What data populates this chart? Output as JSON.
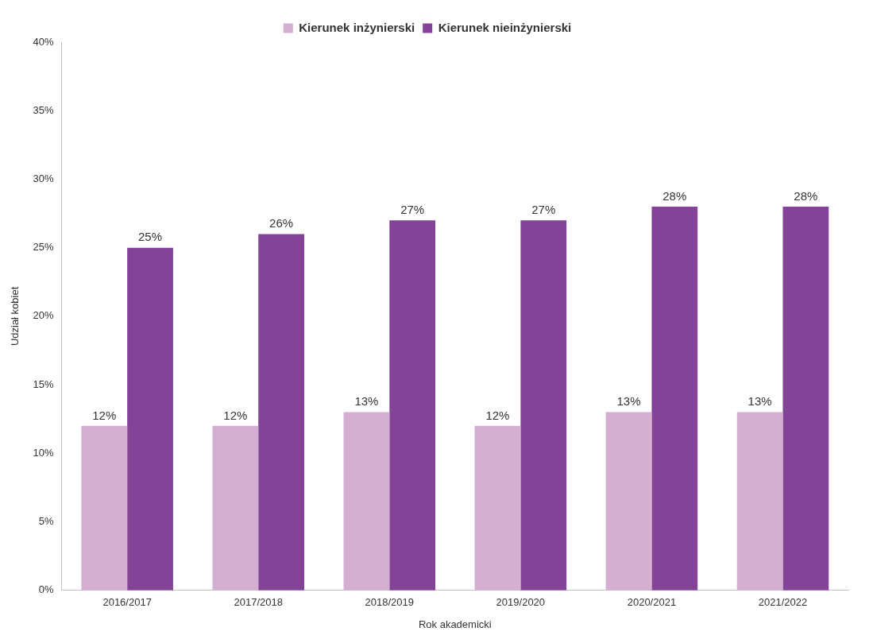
{
  "chart_data": {
    "type": "bar",
    "xlabel": "Rok akademicki",
    "ylabel": "Udział kobiet",
    "categories": [
      "2016/2017",
      "2017/2018",
      "2018/2019",
      "2019/2020",
      "2020/2021",
      "2021/2022"
    ],
    "series": [
      {
        "name": "Kierunek inżynierski",
        "color": "#d4afd1",
        "values": [
          12,
          12,
          13,
          12,
          13,
          13
        ],
        "value_labels": [
          "12%",
          "12%",
          "13%",
          "12%",
          "13%",
          "13%"
        ]
      },
      {
        "name": "Kierunek nieinżynierski",
        "color": "#834397",
        "values": [
          25,
          26,
          27,
          27,
          28,
          28
        ],
        "value_labels": [
          "25%",
          "26%",
          "27%",
          "27%",
          "28%",
          "28%"
        ]
      }
    ],
    "ylim": [
      0,
      40
    ],
    "yticks": [
      {
        "value": 0,
        "label": "0%"
      },
      {
        "value": 5,
        "label": "5%"
      },
      {
        "value": 10,
        "label": "10%"
      },
      {
        "value": 15,
        "label": "15%"
      },
      {
        "value": 20,
        "label": "20%"
      },
      {
        "value": 25,
        "label": "25%"
      },
      {
        "value": 30,
        "label": "30%"
      },
      {
        "value": 35,
        "label": "35%"
      },
      {
        "value": 40,
        "label": "40%"
      }
    ],
    "legend": "top",
    "grid": false
  }
}
